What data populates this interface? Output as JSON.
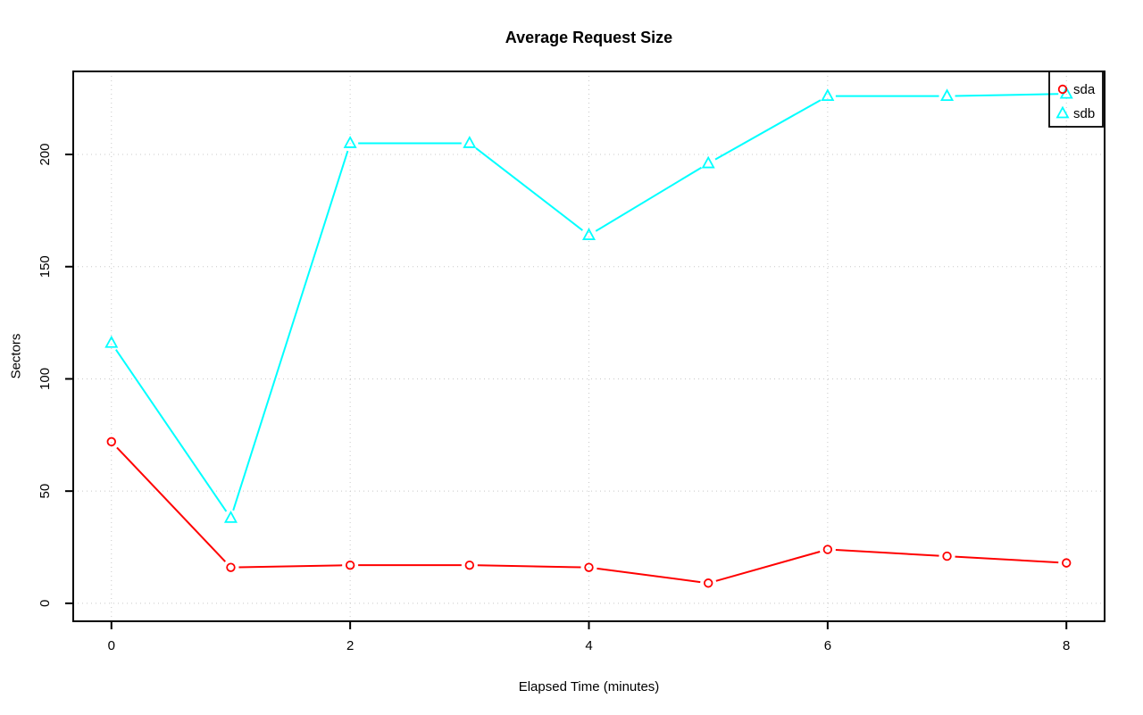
{
  "chart_data": {
    "type": "line",
    "title": "Average Request Size",
    "xlabel": "Elapsed Time (minutes)",
    "ylabel": "Sectors",
    "x": [
      0,
      1,
      2,
      3,
      4,
      5,
      6,
      7,
      8
    ],
    "series": [
      {
        "name": "sda",
        "color": "#FF0000",
        "marker": "circle",
        "values": [
          72,
          16,
          17,
          17,
          16,
          9,
          24,
          21,
          18
        ]
      },
      {
        "name": "sdb",
        "color": "#00FFFF",
        "marker": "triangle",
        "values": [
          116,
          38,
          205,
          205,
          164,
          196,
          226,
          226,
          227
        ]
      }
    ],
    "xticks": [
      0,
      2,
      4,
      6,
      8
    ],
    "yticks": [
      0,
      50,
      100,
      150,
      200
    ],
    "xlim": [
      -0.32,
      8.32
    ],
    "ylim": [
      -8,
      237
    ],
    "grid": "dotted",
    "grid_color": "#C8C8C8",
    "axis_color": "#000000",
    "legend_position": "top-right",
    "legend_entries": [
      "sda",
      "sdb"
    ]
  }
}
